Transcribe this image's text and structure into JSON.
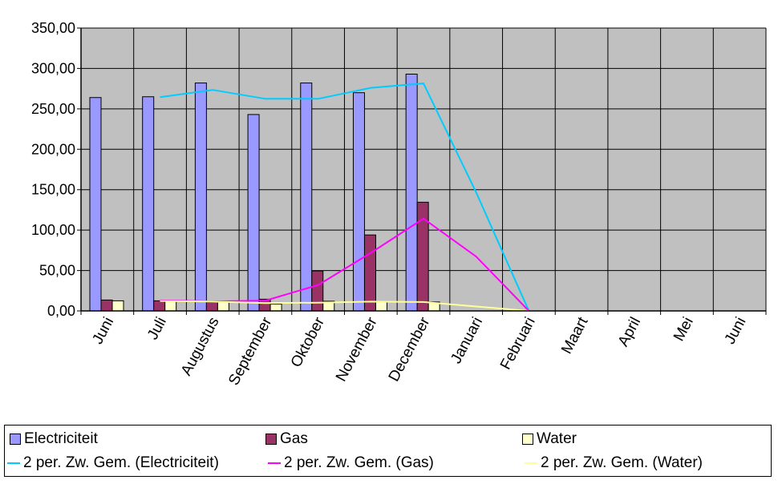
{
  "chart_data": {
    "type": "bar",
    "title": "",
    "xlabel": "",
    "ylabel": "",
    "ylim": [
      0,
      350
    ],
    "yticks": [
      "0,00",
      "50,00",
      "100,00",
      "150,00",
      "200,00",
      "250,00",
      "300,00",
      "350,00"
    ],
    "grid": true,
    "legend_position": "bottom",
    "categories": [
      "Juni",
      "Juli",
      "Augustus",
      "September",
      "Oktober",
      "November",
      "December",
      "Januari",
      "Februari",
      "Maart",
      "April",
      "Mei",
      "Juni"
    ],
    "series": [
      {
        "name": "Electriciteit",
        "color": "#9999FF",
        "values": [
          264,
          265,
          282,
          243,
          282,
          270,
          293,
          0,
          0,
          null,
          null,
          null,
          null
        ]
      },
      {
        "name": "Gas",
        "color": "#993366",
        "values": [
          13.5,
          12.5,
          11,
          14.5,
          49.5,
          94,
          134.5,
          0,
          0,
          null,
          null,
          null,
          null
        ]
      },
      {
        "name": "Water",
        "color": "#FFFFCC",
        "values": [
          12.5,
          12,
          11,
          8.5,
          12,
          11,
          11,
          0,
          0,
          null,
          null,
          null,
          null
        ]
      }
    ],
    "trendlines": [
      {
        "name": "2 per. Zw. Gem. (Electriciteit)",
        "color": "#00CCFF",
        "series": 0,
        "period": 2
      },
      {
        "name": "2 per. Zw. Gem. (Gas)",
        "color": "#FF00FF",
        "series": 1,
        "period": 2
      },
      {
        "name": "2 per. Zw. Gem. (Water)",
        "color": "#FFFF99",
        "series": 2,
        "period": 2
      }
    ]
  }
}
